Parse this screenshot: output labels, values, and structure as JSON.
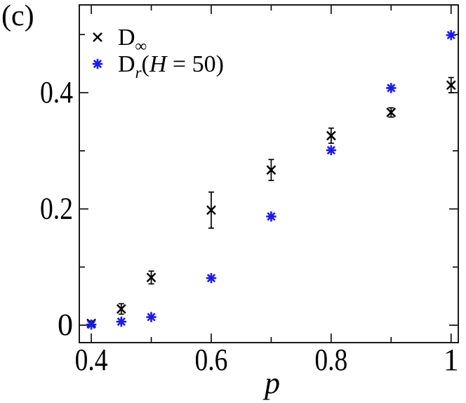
{
  "figure_label": "(c)",
  "colors": {
    "series_black": "#000000",
    "series_blue": "#1a1aee",
    "frame": "#000000",
    "background": "#ffffff"
  },
  "axes": {
    "xlabel": "p",
    "ylabel": "",
    "xlim": [
      0.38,
      1.012
    ],
    "ylim": [
      -0.03,
      0.551
    ],
    "x_major_ticks": [
      {
        "v": 0.4,
        "label": "0.4"
      },
      {
        "v": 0.6,
        "label": "0.6"
      },
      {
        "v": 0.8,
        "label": "0.8"
      },
      {
        "v": 1.0,
        "label": "1"
      }
    ],
    "x_minor_ticks": [
      0.5,
      0.7,
      0.9
    ],
    "y_major_ticks": [
      {
        "v": 0.0,
        "label": "0"
      },
      {
        "v": 0.2,
        "label": "0.2"
      },
      {
        "v": 0.4,
        "label": "0.4"
      }
    ],
    "y_minor_ticks": [
      0.1,
      0.3,
      0.5
    ]
  },
  "legend": {
    "items": [
      {
        "marker": "x",
        "color": "#000000",
        "base": "D",
        "sub": "∞",
        "tail_pre": "",
        "tail_italic": "",
        "tail_post": ""
      },
      {
        "marker": "asterisk",
        "color": "#1a1aee",
        "base": "D",
        "sub": "r",
        "tail_pre": "(",
        "tail_italic": "H",
        "tail_post": " = 50)"
      }
    ]
  },
  "chart_data": {
    "type": "scatter",
    "title": "",
    "xlabel": "p",
    "ylabel": "",
    "grid": false,
    "legend_position": "top-left",
    "x": [
      0.4,
      0.45,
      0.5,
      0.6,
      0.7,
      0.8,
      0.9,
      1.0
    ],
    "series": [
      {
        "name": "D_infinity",
        "marker": "x",
        "color": "#000000",
        "values": [
          0.003,
          0.028,
          0.082,
          0.198,
          0.267,
          0.326,
          0.366,
          0.413
        ],
        "errors": [
          0.004,
          0.009,
          0.011,
          0.031,
          0.018,
          0.013,
          0.008,
          0.013
        ]
      },
      {
        "name": "D_r(H=50)",
        "marker": "asterisk",
        "color": "#1a1aee",
        "values": [
          0.001,
          0.006,
          0.014,
          0.081,
          0.187,
          0.301,
          0.408,
          0.499
        ],
        "errors": null
      }
    ]
  }
}
